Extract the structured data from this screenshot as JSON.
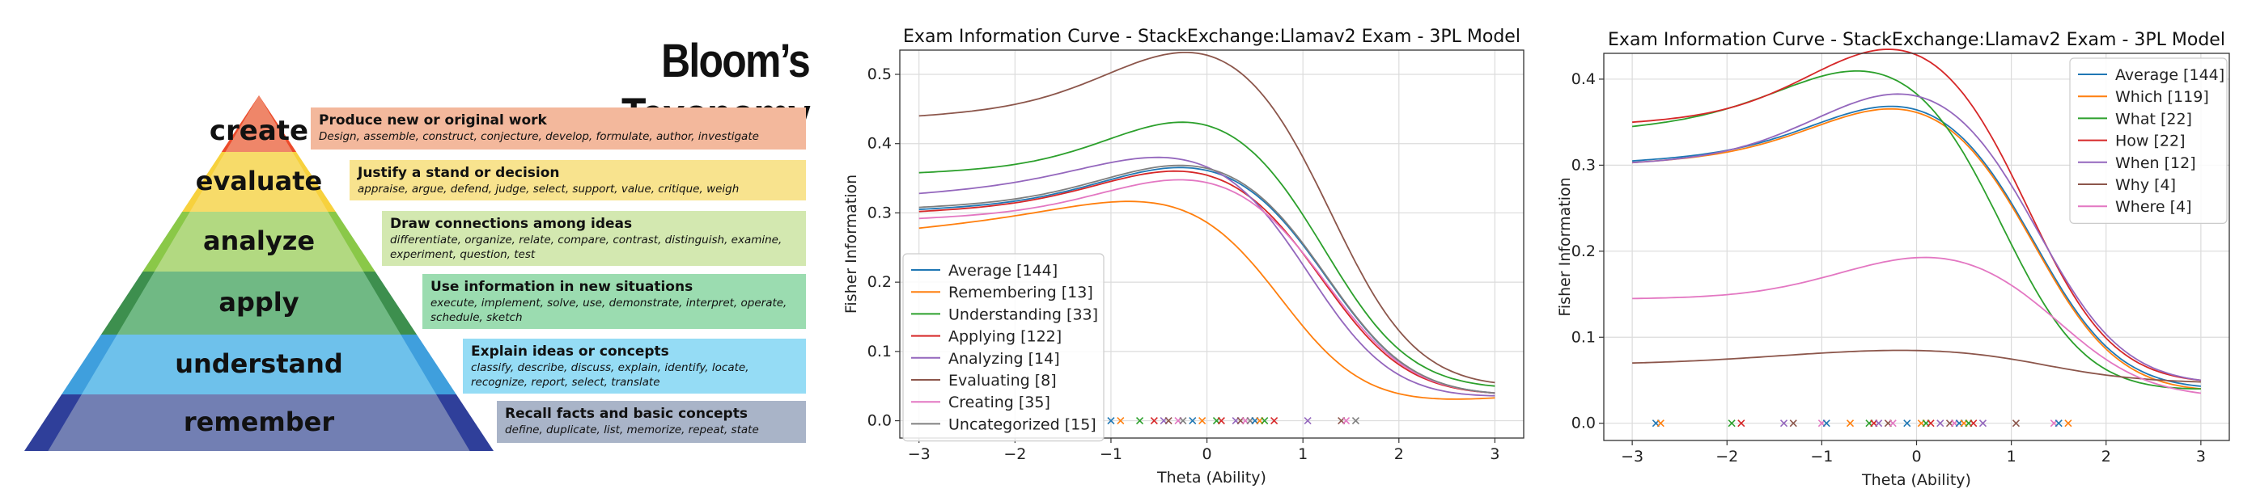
{
  "bloom": {
    "title": "Bloom’s Taxonomy",
    "levels": [
      {
        "name": "create",
        "head": "Produce new or original work",
        "desc": "Design, assemble, construct, conjecture, develop, formulate, author, investigate",
        "color": "#ec4a2a",
        "light": "#f3b89c"
      },
      {
        "name": "evaluate",
        "head": "Justify a stand or decision",
        "desc": "appraise, argue, defend, judge, select, support, value, critique, weigh",
        "color": "#f7d13d",
        "light": "#f8e38e"
      },
      {
        "name": "analyze",
        "head": "Draw connections among ideas",
        "desc": "differentiate, organize, relate, compare, contrast, distinguish, examine, experiment, question, test",
        "color": "#8ac848",
        "light": "#d3e8b0"
      },
      {
        "name": "apply",
        "head": "Use information in new situations",
        "desc": "execute, implement, solve, use, demonstrate, interpret, operate, schedule, sketch",
        "color": "#3d8f4e",
        "light": "#9bdcb0"
      },
      {
        "name": "understand",
        "head": "Explain ideas or concepts",
        "desc": "classify, describe, discuss, explain, identify, locate, recognize, report, select, translate",
        "color": "#3f9fdd",
        "light": "#95dcf5"
      },
      {
        "name": "remember",
        "head": "Recall facts and basic concepts",
        "desc": "define, duplicate, list, memorize, repeat, state",
        "color": "#2f3f9a",
        "light": "#a9b4c8"
      }
    ]
  },
  "chart_data": [
    {
      "type": "line",
      "title": "Exam Information Curve  - StackExchange:Llamav2 Exam - 3PL Model",
      "xlabel": "Theta (Ability)",
      "ylabel": "Fisher Information",
      "xlim": [
        -3.2,
        3.3
      ],
      "ylim": [
        -0.025,
        0.535
      ],
      "xticks": [
        -3,
        -2,
        -1,
        0,
        1,
        2,
        3
      ],
      "yticks": [
        0.0,
        0.1,
        0.2,
        0.3,
        0.4,
        0.5
      ],
      "ytick_labels": [
        "0.0",
        "0.1",
        "0.2",
        "0.3",
        "0.4",
        "0.5"
      ],
      "legend_position": "lower-left",
      "series": [
        {
          "name": "Average [144]",
          "color": "#1f77b4",
          "base": 0.305,
          "peak": 0.352,
          "mu": -0.05,
          "sig": 0.95,
          "right": 0.04
        },
        {
          "name": "Remembering [13]",
          "color": "#ff7f0e",
          "base": 0.278,
          "peak": 0.292,
          "mu": -0.55,
          "sig": 0.9,
          "right": 0.033
        },
        {
          "name": "Understanding [33]",
          "color": "#2ca02c",
          "base": 0.358,
          "peak": 0.418,
          "mu": -0.05,
          "sig": 0.9,
          "right": 0.05
        },
        {
          "name": "Applying [122]",
          "color": "#d62728",
          "base": 0.302,
          "peak": 0.347,
          "mu": -0.1,
          "sig": 0.95,
          "right": 0.04
        },
        {
          "name": "Analyzing [14]",
          "color": "#9467bd",
          "base": 0.328,
          "peak": 0.36,
          "mu": -0.25,
          "sig": 0.95,
          "right": 0.036
        },
        {
          "name": "Evaluating [8]",
          "color": "#8c564b",
          "base": 0.44,
          "peak": 0.512,
          "mu": 0.0,
          "sig": 0.95,
          "right": 0.055
        },
        {
          "name": "Creating [35]",
          "color": "#e377c2",
          "base": 0.292,
          "peak": 0.335,
          "mu": -0.05,
          "sig": 0.95,
          "right": 0.04
        },
        {
          "name": "Uncategorized [15]",
          "color": "#7f7f7f",
          "base": 0.308,
          "peak": 0.355,
          "mu": -0.05,
          "sig": 0.95,
          "right": 0.04
        }
      ],
      "markers": [
        -1.0,
        -0.9,
        -0.7,
        -0.55,
        -0.45,
        -0.4,
        -0.3,
        -0.25,
        -0.15,
        -0.05,
        0.1,
        0.15,
        0.3,
        0.35,
        0.4,
        0.45,
        0.5,
        0.55,
        0.6,
        0.7,
        1.05,
        1.4,
        1.45,
        1.55
      ]
    },
    {
      "type": "line",
      "title": "Exam Information Curve  - StackExchange:Llamav2 Exam - 3PL Model",
      "xlabel": "Theta (Ability)",
      "ylabel": "Fisher Information",
      "xlim": [
        -3.3,
        3.3
      ],
      "ylim": [
        -0.02,
        0.43
      ],
      "xticks": [
        -3,
        -2,
        -1,
        0,
        1,
        2,
        3
      ],
      "yticks": [
        0.0,
        0.1,
        0.2,
        0.3,
        0.4
      ],
      "ytick_labels": [
        "0.0",
        "0.1",
        "0.2",
        "0.3",
        "0.4"
      ],
      "legend_position": "top-right",
      "series": [
        {
          "name": "Average [144]",
          "color": "#1f77b4",
          "base": 0.305,
          "peak": 0.355,
          "mu": -0.05,
          "sig": 0.95,
          "right": 0.043
        },
        {
          "name": "Which [119]",
          "color": "#ff7f0e",
          "base": 0.303,
          "peak": 0.352,
          "mu": -0.05,
          "sig": 0.95,
          "right": 0.04
        },
        {
          "name": "What [22]",
          "color": "#2ca02c",
          "base": 0.345,
          "peak": 0.394,
          "mu": -0.4,
          "sig": 0.95,
          "right": 0.04
        },
        {
          "name": "How [22]",
          "color": "#d62728",
          "base": 0.35,
          "peak": 0.422,
          "mu": -0.1,
          "sig": 0.95,
          "right": 0.05
        },
        {
          "name": "When [12]",
          "color": "#9467bd",
          "base": 0.303,
          "peak": 0.372,
          "mu": 0.0,
          "sig": 1.0,
          "right": 0.05
        },
        {
          "name": "Why [4]",
          "color": "#8c564b",
          "base": 0.07,
          "peak": 0.084,
          "mu": 0.0,
          "sig": 1.4,
          "right": 0.048
        },
        {
          "name": "Where [4]",
          "color": "#e377c2",
          "base": 0.145,
          "peak": 0.19,
          "mu": 0.25,
          "sig": 1.0,
          "right": 0.035
        }
      ],
      "markers": [
        -2.75,
        -2.7,
        -1.95,
        -1.85,
        -1.4,
        -1.3,
        -1.0,
        -0.95,
        -0.7,
        -0.5,
        -0.45,
        -0.4,
        -0.3,
        -0.25,
        -0.1,
        0.05,
        0.1,
        0.15,
        0.25,
        0.35,
        0.4,
        0.45,
        0.5,
        0.55,
        0.6,
        0.7,
        1.05,
        1.45,
        1.5,
        1.6
      ]
    }
  ]
}
